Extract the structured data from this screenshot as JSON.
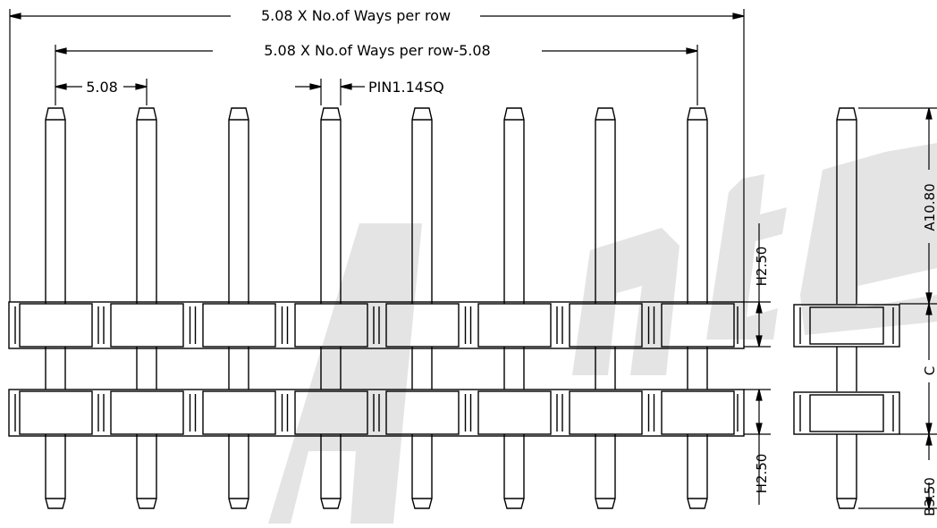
{
  "dimensions": {
    "total_length": "5.08 X No.of Ways per row",
    "pin_span": "5.08 X No.of Ways per row-5.08",
    "pitch": "5.08",
    "pin_size": "PIN1.14SQ",
    "upper_housing_height": "H2.50",
    "lower_housing_height": "H2.50",
    "pin_top_length": "A10.80",
    "spacer_gap": "C",
    "pin_bottom_length": "B3.50"
  },
  "watermark": {
    "text": "Antenk",
    "color": "#e6e6e6"
  },
  "line_color": "#000000",
  "pin_count": 8
}
